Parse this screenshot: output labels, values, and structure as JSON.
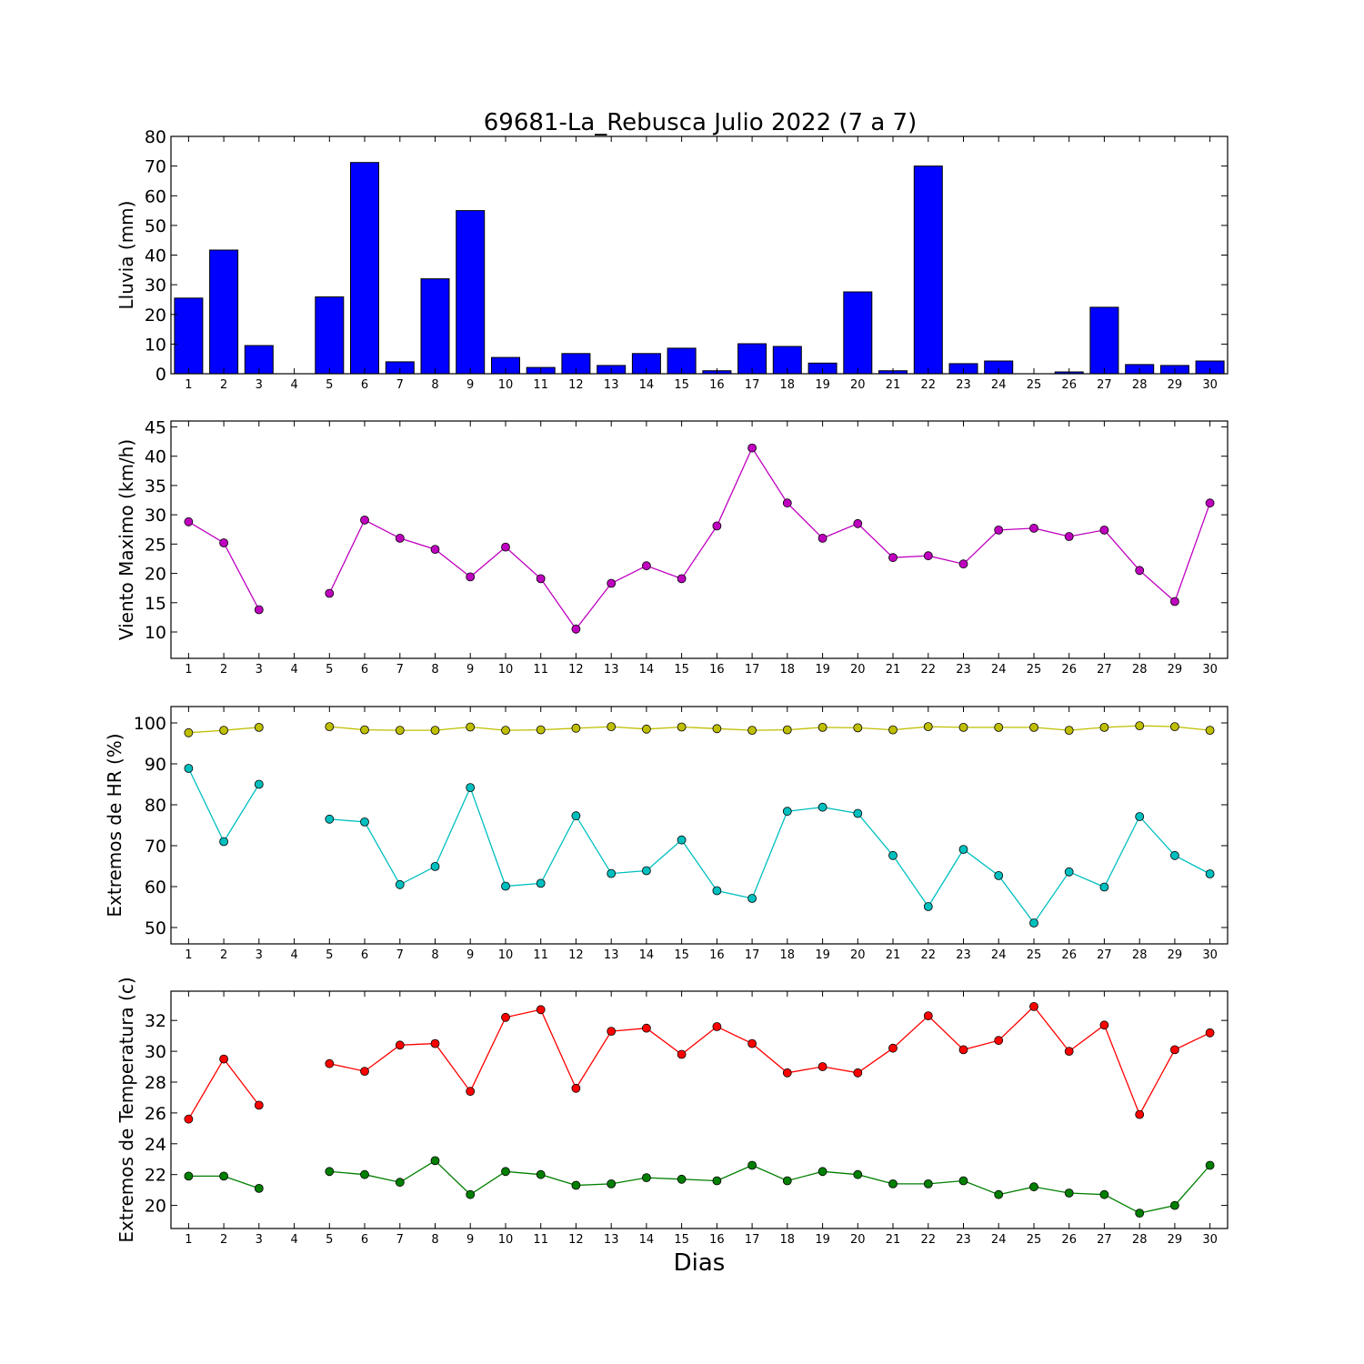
{
  "chart_data": {
    "type": "composite",
    "title": "69681-La_Rebusca Julio 2022  (7 a 7)",
    "xlabel": "Dias",
    "x": [
      1,
      2,
      3,
      4,
      5,
      6,
      7,
      8,
      9,
      10,
      11,
      12,
      13,
      14,
      15,
      16,
      17,
      18,
      19,
      20,
      21,
      22,
      23,
      24,
      25,
      26,
      27,
      28,
      29,
      30
    ],
    "panels": [
      {
        "type": "bar",
        "ylabel": "Lluvia (mm)",
        "ylim": [
          0,
          80
        ],
        "yticks": [
          0,
          10,
          20,
          30,
          40,
          50,
          60,
          70,
          80
        ],
        "series": [
          {
            "color": "#0000ff",
            "values": [
              25.5,
              41.7,
              9.5,
              0,
              25.9,
              71.2,
              4,
              32,
              55,
              5.5,
              2.1,
              6.8,
              2.8,
              6.8,
              8.6,
              1,
              10.1,
              9.2,
              3.6,
              27.6,
              1,
              70,
              3.4,
              4.3,
              0,
              0.6,
              22.4,
              3.1,
              2.8,
              4.3
            ]
          }
        ]
      },
      {
        "type": "line",
        "ylabel": "Viento Maximo (km/h)",
        "ylim": [
          5.5,
          46
        ],
        "yticks": [
          10,
          15,
          20,
          25,
          30,
          35,
          40,
          45
        ],
        "series": [
          {
            "color": "#bf00bf",
            "values": [
              28.8,
              25.2,
              13.8,
              null,
              16.6,
              29.1,
              26,
              24.1,
              19.4,
              24.5,
              19.1,
              10.5,
              18.3,
              21.3,
              19.1,
              28.1,
              41.4,
              32,
              26,
              28.5,
              22.7,
              23,
              21.6,
              27.4,
              27.7,
              26.3,
              27.4,
              20.5,
              15.2,
              32
            ]
          }
        ]
      },
      {
        "type": "line",
        "ylabel": "Extremos de HR (%)",
        "ylim": [
          46,
          104
        ],
        "yticks": [
          50,
          60,
          70,
          80,
          90,
          100
        ],
        "series": [
          {
            "color": "#bfbf00",
            "values": [
              97.6,
              98.2,
              98.9,
              null,
              99.1,
              98.3,
              98.2,
              98.2,
              99,
              98.2,
              98.3,
              98.7,
              99.1,
              98.5,
              99,
              98.6,
              98.2,
              98.3,
              98.9,
              98.8,
              98.3,
              99.1,
              98.9,
              98.9,
              98.9,
              98.2,
              98.9,
              99.3,
              99.1,
              98.2
            ]
          },
          {
            "color": "#00bfbf",
            "values": [
              88.9,
              71,
              85,
              null,
              76.5,
              75.8,
              60.5,
              64.9,
              84.2,
              60.1,
              60.8,
              77.3,
              63.2,
              63.9,
              71.4,
              59,
              57.1,
              78.4,
              79.4,
              77.9,
              67.6,
              55.1,
              69.1,
              62.7,
              51.1,
              63.6,
              59.9,
              77.1,
              67.6,
              63.1
            ]
          }
        ]
      },
      {
        "type": "line",
        "ylabel": "Extremos de Temperatura (c)",
        "ylim": [
          18.5,
          33.9
        ],
        "yticks": [
          20,
          22,
          24,
          26,
          28,
          30,
          32
        ],
        "series": [
          {
            "color": "#ff0000",
            "values": [
              25.6,
              29.5,
              26.5,
              null,
              29.2,
              28.7,
              30.4,
              30.5,
              27.4,
              32.2,
              32.7,
              27.6,
              31.3,
              31.5,
              29.8,
              31.6,
              30.5,
              28.6,
              29,
              28.6,
              30.2,
              32.3,
              30.1,
              30.7,
              32.9,
              30,
              31.7,
              25.9,
              30.1,
              31.2
            ]
          },
          {
            "color": "#007f00",
            "values": [
              21.9,
              21.9,
              21.1,
              null,
              22.2,
              22,
              21.5,
              22.9,
              20.7,
              22.2,
              22,
              21.3,
              21.4,
              21.8,
              21.7,
              21.6,
              22.6,
              21.6,
              22.2,
              22,
              21.4,
              21.4,
              21.6,
              20.7,
              21.2,
              20.8,
              20.7,
              19.5,
              20,
              22.6
            ]
          }
        ]
      }
    ]
  }
}
